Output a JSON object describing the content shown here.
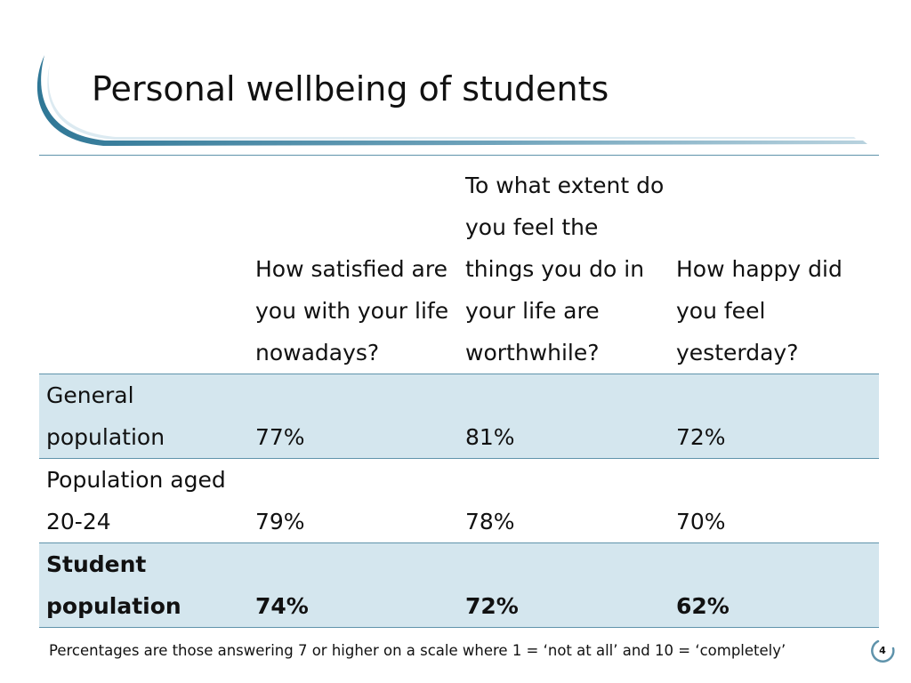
{
  "slide": {
    "title": "Personal wellbeing of students",
    "footnote": "Percentages are those answering 7 or higher on a scale where 1 = ‘not at all’ and 10 = ‘completely’",
    "page_number": "4",
    "accent_color": "#5f93ab",
    "row_shade_color": "#d4e6ee"
  },
  "table": {
    "columns": [
      "",
      "How satisfied are you with your life nowadays?",
      "To what extent do you feel the things you do in your life are worthwhile?",
      "How happy did you feel yesterday?"
    ],
    "rows": [
      {
        "label": "General population",
        "values": [
          "77%",
          "81%",
          "72%"
        ]
      },
      {
        "label": "Population aged 20-24",
        "values": [
          "79%",
          "78%",
          "70%"
        ]
      },
      {
        "label": "Student population",
        "values": [
          "74%",
          "72%",
          "62%"
        ]
      }
    ]
  }
}
